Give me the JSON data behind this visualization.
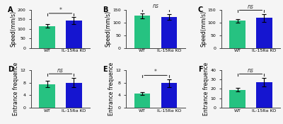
{
  "panels": [
    {
      "label": "A",
      "ylabel": "Speed(mm/s)",
      "ylim": [
        0,
        200
      ],
      "yticks": [
        0,
        50,
        100,
        150,
        200
      ],
      "wt_val": 115,
      "wt_err": 10,
      "ko_val": 143,
      "ko_err": 18,
      "sig": "*"
    },
    {
      "label": "B",
      "ylabel": "Speed(mm/s)",
      "ylim": [
        0,
        150
      ],
      "yticks": [
        0,
        50,
        100,
        150
      ],
      "wt_val": 127,
      "wt_err": 10,
      "ko_val": 122,
      "ko_err": 12,
      "sig": "ns"
    },
    {
      "label": "C",
      "ylabel": "Speed(mm/s)",
      "ylim": [
        0,
        150
      ],
      "yticks": [
        0,
        50,
        100,
        150
      ],
      "wt_val": 108,
      "wt_err": 7,
      "ko_val": 118,
      "ko_err": 15,
      "sig": "ns"
    },
    {
      "label": "D",
      "ylabel": "Entrance frequence",
      "ylim": [
        0,
        12
      ],
      "yticks": [
        0,
        4,
        8,
        12
      ],
      "wt_val": 7.5,
      "wt_err": 1.0,
      "ko_val": 8.0,
      "ko_err": 1.5,
      "sig": "ns"
    },
    {
      "label": "E",
      "ylabel": "Entrance frequence",
      "ylim": [
        0,
        12
      ],
      "yticks": [
        0,
        4,
        8,
        12
      ],
      "wt_val": 4.5,
      "wt_err": 0.5,
      "ko_val": 7.8,
      "ko_err": 1.2,
      "sig": "*"
    },
    {
      "label": "F",
      "ylabel": "Entrance frequence",
      "ylim": [
        0,
        40
      ],
      "yticks": [
        0,
        10,
        20,
        30,
        40
      ],
      "wt_val": 19,
      "wt_err": 2.0,
      "ko_val": 27,
      "ko_err": 4.5,
      "sig": "ns"
    }
  ],
  "green_color": "#26c281",
  "blue_color": "#1515d0",
  "bar_width": 0.6,
  "xtick_labels": [
    "WT",
    "IL-15Rα KO"
  ],
  "bracket_color": "#333333",
  "label_fontsize": 5.5,
  "tick_fontsize": 4.5,
  "sig_fontsize": 5.5,
  "panel_label_fontsize": 7,
  "background_color": "#f5f5f5"
}
